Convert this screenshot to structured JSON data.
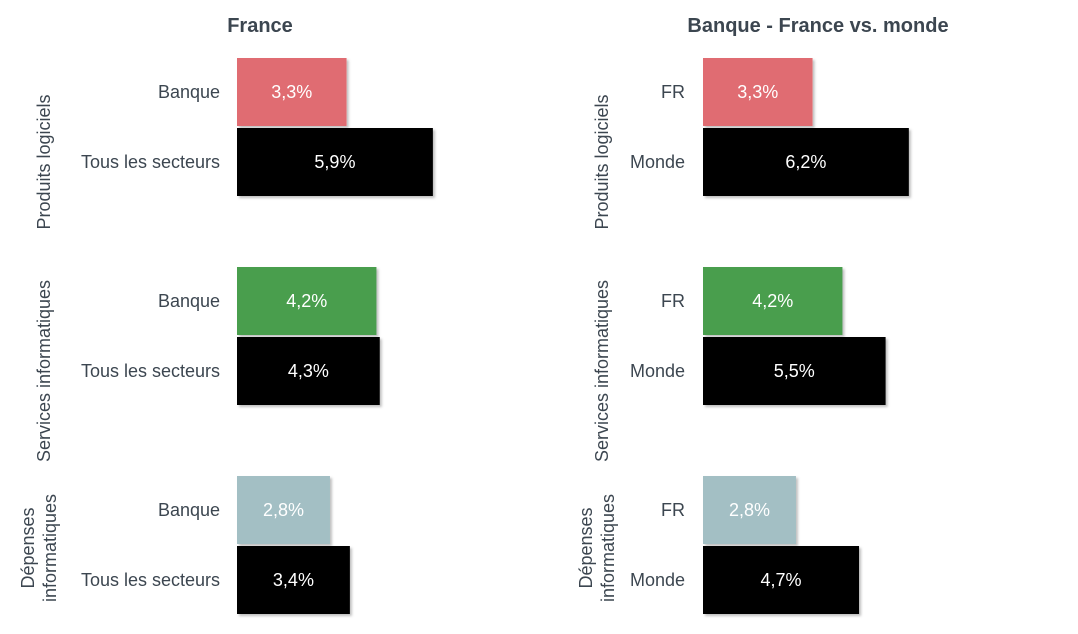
{
  "chart_data": [
    {
      "type": "bar",
      "orientation": "horizontal",
      "title": "France",
      "unit": "%",
      "groups": [
        {
          "label": "Produits logiciels",
          "color": "#e06c72",
          "bars": [
            {
              "label": "Banque",
              "value": 3.3,
              "display": "3,3%"
            },
            {
              "label": "Tous les secteurs",
              "value": 5.9,
              "display": "5,9%"
            }
          ]
        },
        {
          "label": "Services informatiques",
          "color": "#4a9e4e",
          "bars": [
            {
              "label": "Banque",
              "value": 4.2,
              "display": "4,2%"
            },
            {
              "label": "Tous les secteurs",
              "value": 4.3,
              "display": "4,3%"
            }
          ]
        },
        {
          "label": "Dépenses informatiques",
          "color": "#a3bfc4",
          "bars": [
            {
              "label": "Banque",
              "value": 2.8,
              "display": "2,8%"
            },
            {
              "label": "Tous les secteurs",
              "value": 3.4,
              "display": "3,4%"
            }
          ]
        }
      ],
      "secondary_color": "#000000"
    },
    {
      "type": "bar",
      "orientation": "horizontal",
      "title": "Banque - France vs. monde",
      "unit": "%",
      "groups": [
        {
          "label": "Produits logiciels",
          "color": "#e06c72",
          "bars": [
            {
              "label": "FR",
              "value": 3.3,
              "display": "3,3%"
            },
            {
              "label": "Monde",
              "value": 6.2,
              "display": "6,2%"
            }
          ]
        },
        {
          "label": "Services informatiques",
          "color": "#4a9e4e",
          "bars": [
            {
              "label": "FR",
              "value": 4.2,
              "display": "4,2%"
            },
            {
              "label": "Monde",
              "value": 5.5,
              "display": "5,5%"
            }
          ]
        },
        {
          "label": "Dépenses informatiques",
          "color": "#a3bfc4",
          "bars": [
            {
              "label": "FR",
              "value": 2.8,
              "display": "2,8%"
            },
            {
              "label": "Monde",
              "value": 4.7,
              "display": "4,7%"
            }
          ]
        }
      ],
      "secondary_color": "#000000"
    }
  ]
}
